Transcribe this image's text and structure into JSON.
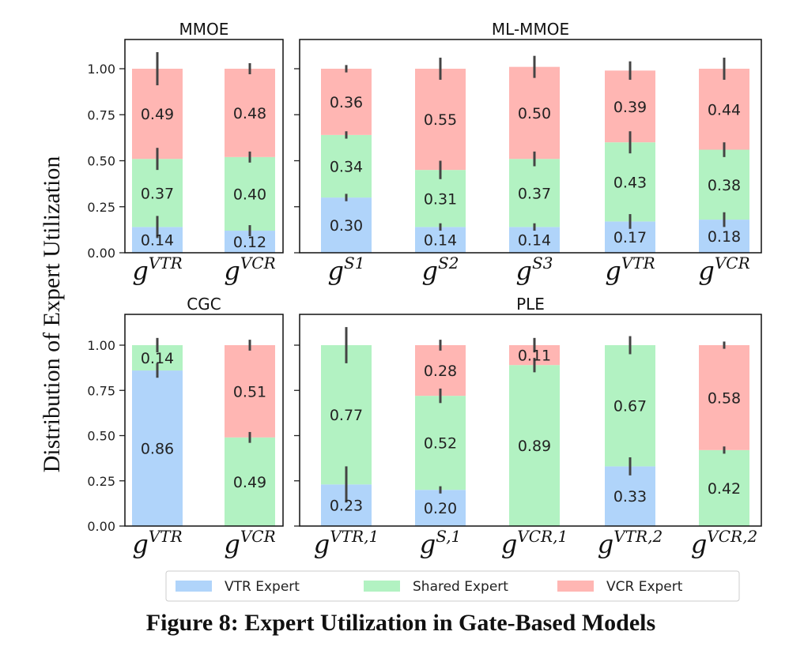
{
  "chart_data": {
    "type": "bar",
    "stacked": true,
    "ylabel": "Distribution of Expert Utilization",
    "ylim": [
      0,
      1.1
    ],
    "yticks": [
      "0.00",
      "0.25",
      "0.50",
      "0.75",
      "1.00"
    ],
    "grid": false,
    "legend": {
      "placement": "bottom",
      "entries": [
        "VTR Expert",
        "Shared Expert",
        "VCR Expert"
      ]
    },
    "colors": {
      "VTR Expert": "#b0d4fa",
      "Shared Expert": "#b2f2c2",
      "VCR Expert": "#ffb6b3",
      "errorbar": "#444444"
    },
    "subplots": [
      {
        "title": "MMOE",
        "categories": [
          {
            "base": "g",
            "sup": "VTR"
          },
          {
            "base": "g",
            "sup": "VCR"
          }
        ],
        "series": [
          {
            "name": "VTR Expert",
            "values": [
              0.14,
              0.12
            ],
            "errors": [
              0.06,
              0.03
            ]
          },
          {
            "name": "Shared Expert",
            "values": [
              0.37,
              0.4
            ],
            "errors": [
              0.06,
              0.03
            ]
          },
          {
            "name": "VCR Expert",
            "values": [
              0.49,
              0.48
            ],
            "errors": [
              0.09,
              0.03
            ]
          }
        ]
      },
      {
        "title": "ML-MMOE",
        "categories": [
          {
            "base": "g",
            "sup": "S1"
          },
          {
            "base": "g",
            "sup": "S2"
          },
          {
            "base": "g",
            "sup": "S3"
          },
          {
            "base": "g",
            "sup": "VTR"
          },
          {
            "base": "g",
            "sup": "VCR"
          }
        ],
        "series": [
          {
            "name": "VTR Expert",
            "values": [
              0.3,
              0.14,
              0.14,
              0.17,
              0.18
            ],
            "errors": [
              0.02,
              0.02,
              0.02,
              0.04,
              0.04
            ]
          },
          {
            "name": "Shared Expert",
            "values": [
              0.34,
              0.31,
              0.37,
              0.43,
              0.38
            ],
            "errors": [
              0.02,
              0.05,
              0.04,
              0.06,
              0.04
            ]
          },
          {
            "name": "VCR Expert",
            "values": [
              0.36,
              0.55,
              0.5,
              0.39,
              0.44
            ],
            "errors": [
              0.02,
              0.06,
              0.06,
              0.05,
              0.06
            ]
          }
        ]
      },
      {
        "title": "CGC",
        "categories": [
          {
            "base": "g",
            "sup": "VTR"
          },
          {
            "base": "g",
            "sup": "VCR"
          }
        ],
        "series": [
          {
            "name": "VTR Expert",
            "values": [
              0.86,
              0
            ],
            "errors": [
              0.04,
              null
            ]
          },
          {
            "name": "Shared Expert",
            "values": [
              0.14,
              0.49
            ],
            "errors": [
              0.04,
              0.03
            ]
          },
          {
            "name": "VCR Expert",
            "values": [
              0,
              0.51
            ],
            "errors": [
              null,
              0.03
            ]
          }
        ]
      },
      {
        "title": "PLE",
        "categories": [
          {
            "base": "g",
            "sup": "VTR,1"
          },
          {
            "base": "g",
            "sup": "S,1"
          },
          {
            "base": "g",
            "sup": "VCR,1"
          },
          {
            "base": "g",
            "sup": "VTR,2"
          },
          {
            "base": "g",
            "sup": "VCR,2"
          }
        ],
        "series": [
          {
            "name": "VTR Expert",
            "values": [
              0.23,
              0.2,
              0,
              0.33,
              0
            ],
            "errors": [
              0.1,
              0.02,
              null,
              0.05,
              null
            ]
          },
          {
            "name": "Shared Expert",
            "values": [
              0.77,
              0.52,
              0.89,
              0.67,
              0.42
            ],
            "errors": [
              0.1,
              0.04,
              0.04,
              0.05,
              0.02
            ]
          },
          {
            "name": "VCR Expert",
            "values": [
              0,
              0.28,
              0.11,
              0,
              0.58
            ],
            "errors": [
              null,
              0.03,
              0.04,
              null,
              0.02
            ]
          }
        ]
      }
    ]
  },
  "caption": "Figure 8: Expert Utilization in Gate-Based Models"
}
